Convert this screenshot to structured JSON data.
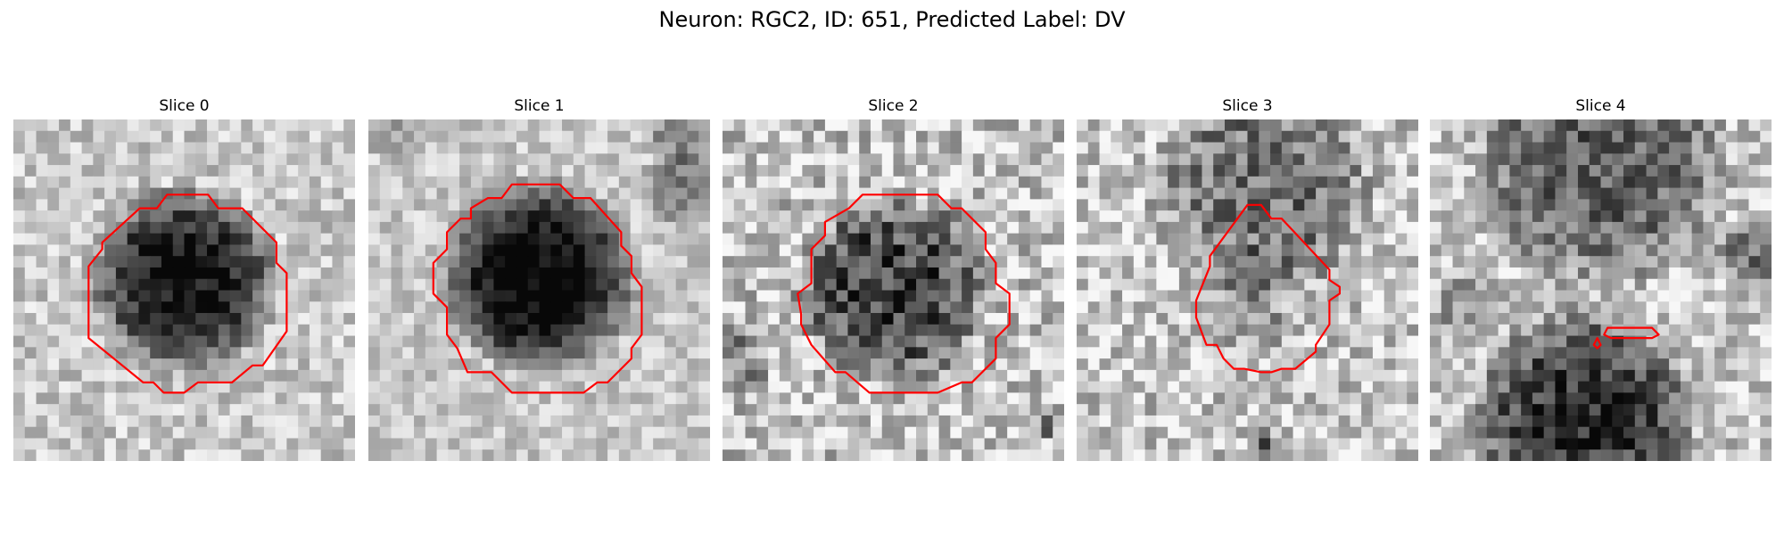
{
  "title": "Neuron: RGC2, ID: 651, Predicted Label: DV",
  "colors": {
    "contour": "#ff0000",
    "background": "#ffffff"
  },
  "image_grid": 30,
  "panels": [
    {
      "title": "Slice 0",
      "dark_blob": [
        0.5,
        0.47,
        0.29,
        1.0
      ],
      "darkness": 0.72,
      "noise": 0.35,
      "extra_dark": [],
      "contours": [
        [
          [
            0.45,
            0.22
          ],
          [
            0.57,
            0.22
          ],
          [
            0.6,
            0.26
          ],
          [
            0.67,
            0.26
          ],
          [
            0.77,
            0.36
          ],
          [
            0.77,
            0.42
          ],
          [
            0.8,
            0.45
          ],
          [
            0.8,
            0.62
          ],
          [
            0.73,
            0.72
          ],
          [
            0.7,
            0.72
          ],
          [
            0.64,
            0.77
          ],
          [
            0.54,
            0.77
          ],
          [
            0.5,
            0.8
          ],
          [
            0.44,
            0.8
          ],
          [
            0.41,
            0.77
          ],
          [
            0.38,
            0.77
          ],
          [
            0.22,
            0.64
          ],
          [
            0.22,
            0.43
          ],
          [
            0.26,
            0.38
          ],
          [
            0.26,
            0.36
          ],
          [
            0.37,
            0.26
          ],
          [
            0.42,
            0.26
          ]
        ]
      ]
    },
    {
      "title": "Slice 1",
      "dark_blob": [
        0.5,
        0.46,
        0.3,
        1.0
      ],
      "darkness": 0.78,
      "noise": 0.3,
      "extra_dark": [
        [
          0.92,
          0.2,
          0.12,
          0.5
        ],
        [
          0.9,
          0.05,
          0.1,
          0.4
        ],
        [
          0.08,
          0.05,
          0.08,
          0.3
        ]
      ],
      "contours": [
        [
          [
            0.42,
            0.19
          ],
          [
            0.56,
            0.19
          ],
          [
            0.6,
            0.23
          ],
          [
            0.65,
            0.23
          ],
          [
            0.74,
            0.33
          ],
          [
            0.74,
            0.37
          ],
          [
            0.77,
            0.4
          ],
          [
            0.77,
            0.45
          ],
          [
            0.8,
            0.49
          ],
          [
            0.8,
            0.63
          ],
          [
            0.77,
            0.67
          ],
          [
            0.77,
            0.7
          ],
          [
            0.7,
            0.77
          ],
          [
            0.67,
            0.77
          ],
          [
            0.63,
            0.8
          ],
          [
            0.42,
            0.8
          ],
          [
            0.36,
            0.74
          ],
          [
            0.29,
            0.74
          ],
          [
            0.26,
            0.67
          ],
          [
            0.23,
            0.63
          ],
          [
            0.23,
            0.55
          ],
          [
            0.19,
            0.51
          ],
          [
            0.19,
            0.42
          ],
          [
            0.23,
            0.38
          ],
          [
            0.23,
            0.33
          ],
          [
            0.27,
            0.29
          ],
          [
            0.3,
            0.29
          ],
          [
            0.3,
            0.26
          ],
          [
            0.35,
            0.23
          ],
          [
            0.39,
            0.23
          ]
        ]
      ]
    },
    {
      "title": "Slice 2",
      "dark_blob": [
        0.5,
        0.5,
        0.3,
        0.8
      ],
      "darkness": 0.55,
      "noise": 0.55,
      "extra_dark": [
        [
          0.05,
          0.7,
          0.1,
          0.4
        ],
        [
          0.95,
          0.9,
          0.06,
          0.4
        ]
      ],
      "contours": [
        [
          [
            0.41,
            0.22
          ],
          [
            0.63,
            0.22
          ],
          [
            0.67,
            0.26
          ],
          [
            0.7,
            0.26
          ],
          [
            0.77,
            0.33
          ],
          [
            0.77,
            0.38
          ],
          [
            0.8,
            0.42
          ],
          [
            0.8,
            0.48
          ],
          [
            0.84,
            0.51
          ],
          [
            0.84,
            0.6
          ],
          [
            0.8,
            0.64
          ],
          [
            0.8,
            0.7
          ],
          [
            0.73,
            0.77
          ],
          [
            0.7,
            0.77
          ],
          [
            0.63,
            0.8
          ],
          [
            0.53,
            0.8
          ],
          [
            0.47,
            0.8
          ],
          [
            0.43,
            0.8
          ],
          [
            0.36,
            0.74
          ],
          [
            0.33,
            0.74
          ],
          [
            0.26,
            0.66
          ],
          [
            0.23,
            0.6
          ],
          [
            0.23,
            0.57
          ],
          [
            0.22,
            0.51
          ],
          [
            0.26,
            0.48
          ],
          [
            0.26,
            0.38
          ],
          [
            0.3,
            0.34
          ],
          [
            0.3,
            0.3
          ],
          [
            0.37,
            0.26
          ]
        ]
      ]
    },
    {
      "title": "Slice 3",
      "dark_blob": [
        0.55,
        0.2,
        0.35,
        0.5
      ],
      "darkness": 0.35,
      "noise": 0.5,
      "extra_dark": [
        [
          0.5,
          0.55,
          0.2,
          0.25
        ],
        [
          0.55,
          0.95,
          0.04,
          0.6
        ]
      ],
      "contours": [
        [
          [
            0.5,
            0.25
          ],
          [
            0.54,
            0.25
          ],
          [
            0.57,
            0.29
          ],
          [
            0.6,
            0.29
          ],
          [
            0.74,
            0.44
          ],
          [
            0.74,
            0.47
          ],
          [
            0.77,
            0.49
          ],
          [
            0.77,
            0.51
          ],
          [
            0.74,
            0.53
          ],
          [
            0.74,
            0.6
          ],
          [
            0.72,
            0.63
          ],
          [
            0.7,
            0.66
          ],
          [
            0.7,
            0.68
          ],
          [
            0.64,
            0.73
          ],
          [
            0.6,
            0.73
          ],
          [
            0.57,
            0.74
          ],
          [
            0.54,
            0.74
          ],
          [
            0.49,
            0.73
          ],
          [
            0.46,
            0.73
          ],
          [
            0.43,
            0.7
          ],
          [
            0.41,
            0.66
          ],
          [
            0.38,
            0.66
          ],
          [
            0.35,
            0.58
          ],
          [
            0.35,
            0.53
          ],
          [
            0.39,
            0.43
          ],
          [
            0.39,
            0.4
          ]
        ]
      ]
    },
    {
      "title": "Slice 4",
      "dark_blob": [
        0.45,
        0.88,
        0.35,
        0.95
      ],
      "darkness": 0.6,
      "noise": 0.45,
      "extra_dark": [
        [
          0.5,
          0.12,
          0.4,
          0.7
        ],
        [
          0.95,
          0.4,
          0.12,
          0.6
        ],
        [
          0.1,
          0.55,
          0.1,
          0.4
        ]
      ],
      "contours": [
        [
          [
            0.52,
            0.61
          ],
          [
            0.65,
            0.61
          ],
          [
            0.67,
            0.63
          ],
          [
            0.65,
            0.64
          ],
          [
            0.53,
            0.64
          ],
          [
            0.51,
            0.63
          ]
        ],
        [
          [
            0.49,
            0.64
          ],
          [
            0.5,
            0.66
          ],
          [
            0.49,
            0.67
          ],
          [
            0.48,
            0.66
          ]
        ]
      ]
    }
  ]
}
